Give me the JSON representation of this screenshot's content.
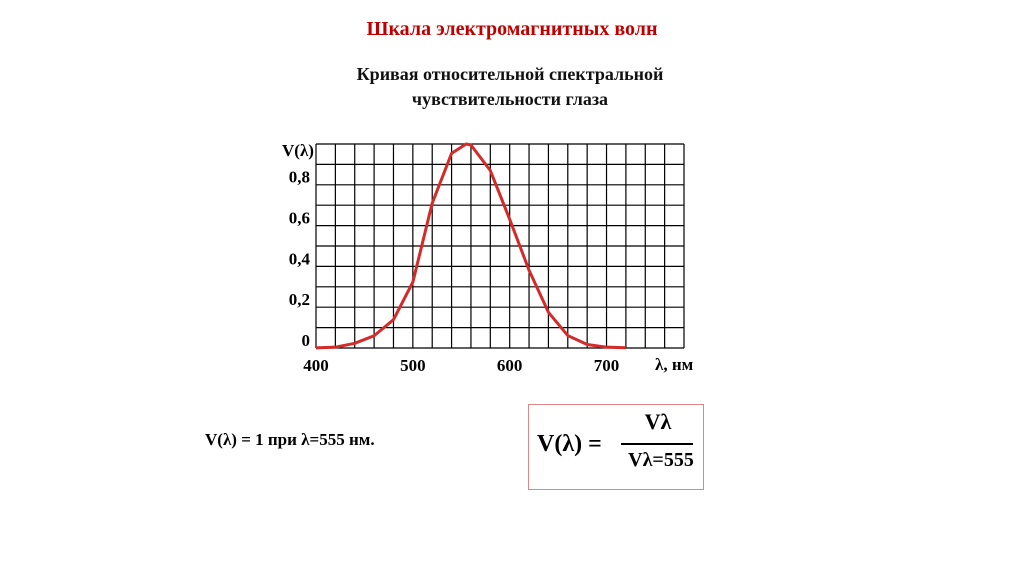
{
  "slide_title": "Шкала электромагнитных волн",
  "chart_data": {
    "type": "line",
    "title": "Кривая относительной спектральной чувствительности глаза",
    "x_label": "λ, нм",
    "y_label": "V(λ)",
    "x": [
      400,
      420,
      440,
      460,
      480,
      500,
      520,
      540,
      555,
      560,
      580,
      600,
      620,
      640,
      660,
      680,
      700,
      720
    ],
    "series": [
      {
        "name": "V(λ)",
        "color": "#d42a2a",
        "values": [
          0.0004,
          0.004,
          0.023,
          0.06,
          0.139,
          0.323,
          0.71,
          0.954,
          1.0,
          0.995,
          0.87,
          0.631,
          0.381,
          0.175,
          0.061,
          0.017,
          0.004,
          0.001
        ]
      }
    ],
    "xlim": [
      400,
      780
    ],
    "ylim": [
      0,
      1.0
    ],
    "xticks": [
      400,
      500,
      600,
      700
    ],
    "yticks": [
      0,
      {
        "value": 0.2,
        "label": "0,2"
      },
      {
        "value": 0.4,
        "label": "0,4"
      },
      {
        "value": 0.6,
        "label": "0,6"
      },
      {
        "value": 0.8,
        "label": "0,8"
      }
    ],
    "xgrid": [
      400,
      420,
      440,
      460,
      480,
      500,
      520,
      540,
      560,
      580,
      600,
      620,
      640,
      660,
      680,
      700,
      720,
      740,
      760,
      780
    ],
    "ygrid": [
      0,
      0.1,
      0.2,
      0.3,
      0.4,
      0.5,
      0.6,
      0.7,
      0.8,
      0.9,
      1.0
    ],
    "grid": true
  },
  "note": "V(λ) = 1 при λ=555 нм.",
  "formula": {
    "lhs": "V(λ) =",
    "numerator": "Vλ",
    "denominator": "Vλ=555"
  }
}
